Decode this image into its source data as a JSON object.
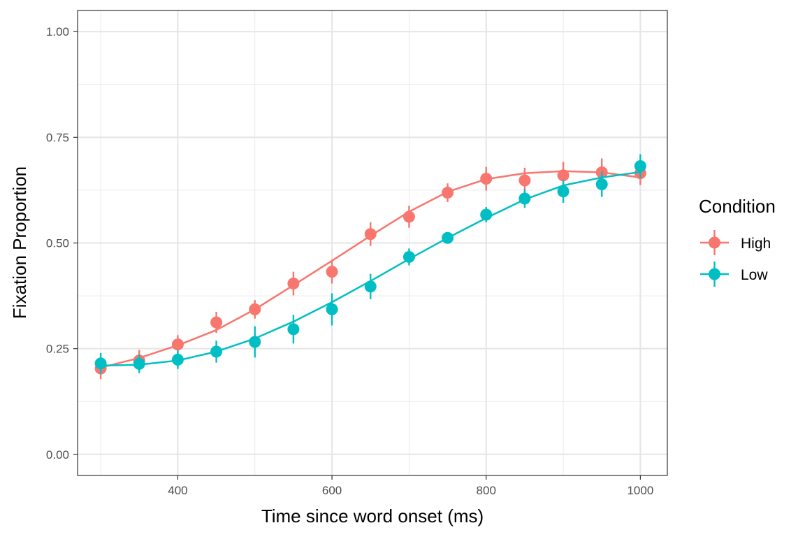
{
  "chart_data": {
    "type": "line",
    "xlabel": "Time since word onset (ms)",
    "ylabel": "Fixation Proportion",
    "xlim": [
      270,
      1035
    ],
    "ylim": [
      -0.05,
      1.05
    ],
    "x_ticks": [
      400,
      600,
      800,
      1000
    ],
    "x_tick_labels": [
      "400",
      "600",
      "800",
      "1000"
    ],
    "x_minor_ticks": [
      300,
      500,
      700,
      900
    ],
    "y_ticks": [
      0,
      0.25,
      0.5,
      0.75,
      1
    ],
    "y_tick_labels": [
      "0.00",
      "0.25",
      "0.50",
      "0.75",
      "1.00"
    ],
    "y_minor_ticks": [
      0.125,
      0.375,
      0.625,
      0.875
    ],
    "grid": true,
    "legend": {
      "title": "Condition",
      "position": "right"
    },
    "x": [
      300,
      350,
      400,
      450,
      500,
      550,
      600,
      650,
      700,
      750,
      800,
      850,
      900,
      950,
      1000
    ],
    "series": [
      {
        "name": "High",
        "color": "#F8766D",
        "values": [
          0.203,
          0.222,
          0.26,
          0.312,
          0.343,
          0.404,
          0.432,
          0.521,
          0.562,
          0.619,
          0.652,
          0.648,
          0.66,
          0.667,
          0.665
        ],
        "error": [
          0.025,
          0.025,
          0.022,
          0.025,
          0.022,
          0.028,
          0.028,
          0.028,
          0.026,
          0.022,
          0.028,
          0.03,
          0.032,
          0.033,
          0.028
        ],
        "fit": [
          0.205,
          0.228,
          0.258,
          0.294,
          0.343,
          0.4,
          0.458,
          0.517,
          0.574,
          0.621,
          0.651,
          0.665,
          0.67,
          0.667,
          0.655
        ]
      },
      {
        "name": "Low",
        "color": "#00BFC4",
        "values": [
          0.215,
          0.214,
          0.224,
          0.243,
          0.266,
          0.296,
          0.343,
          0.397,
          0.467,
          0.512,
          0.567,
          0.605,
          0.622,
          0.639,
          0.682
        ],
        "error": [
          0.025,
          0.022,
          0.022,
          0.026,
          0.037,
          0.034,
          0.038,
          0.03,
          0.02,
          0.012,
          0.018,
          0.022,
          0.027,
          0.03,
          0.028
        ],
        "fit": [
          0.21,
          0.212,
          0.222,
          0.243,
          0.274,
          0.314,
          0.36,
          0.41,
          0.462,
          0.512,
          0.559,
          0.603,
          0.636,
          0.655,
          0.668
        ]
      }
    ]
  }
}
